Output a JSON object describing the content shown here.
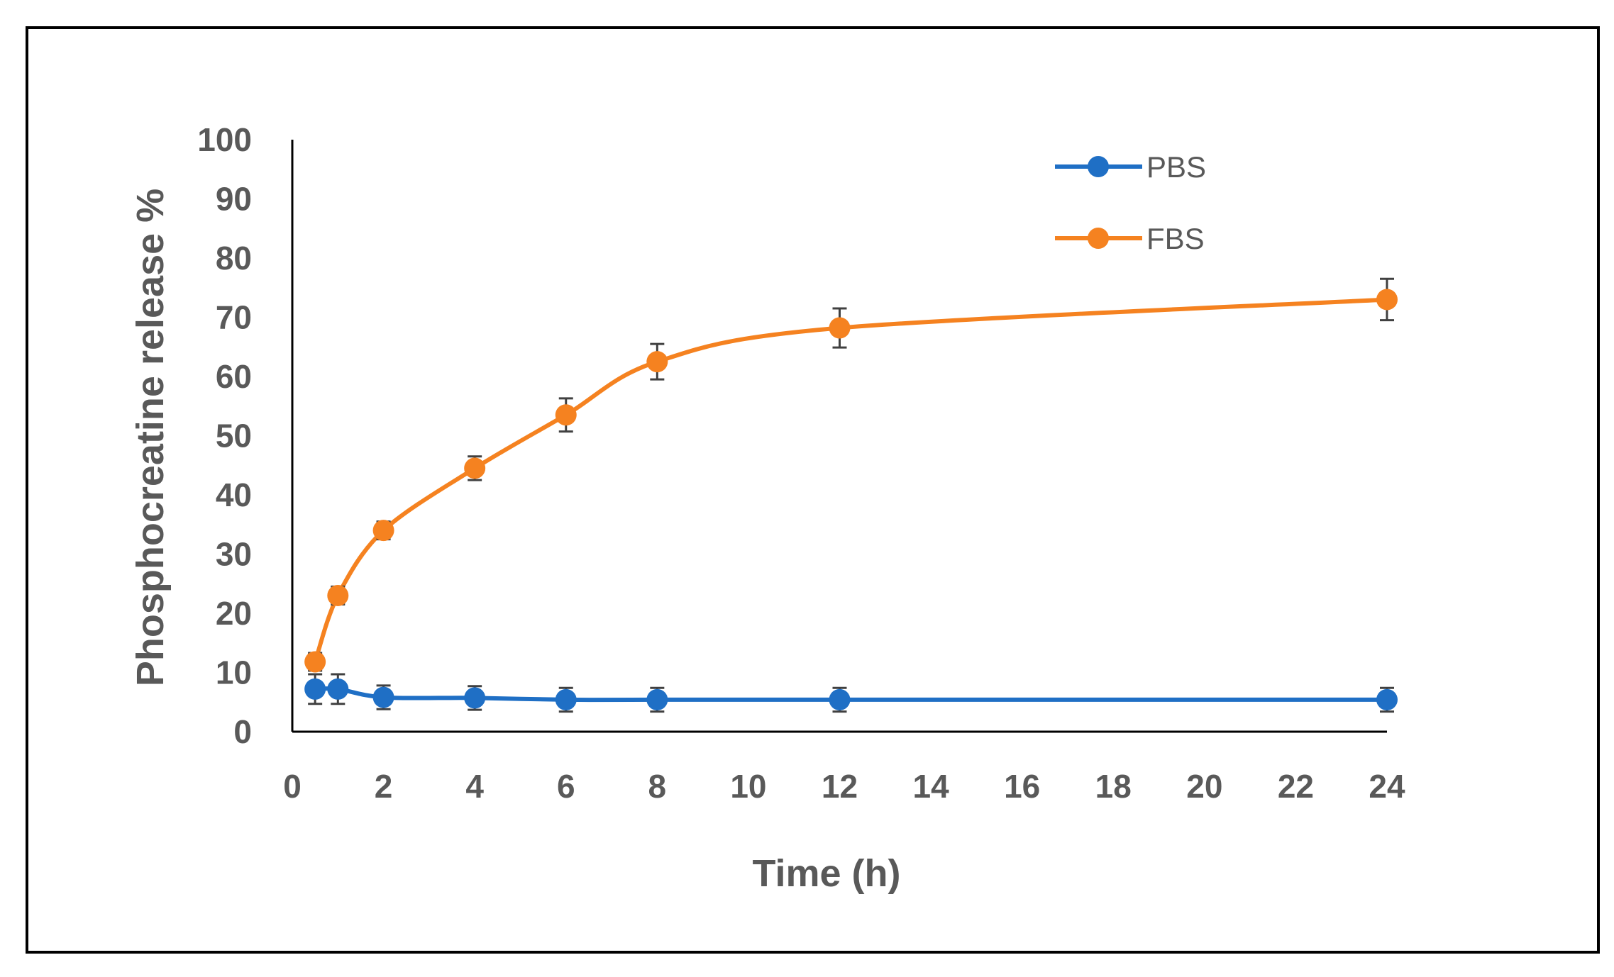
{
  "chart_data": {
    "type": "line",
    "title": "",
    "xlabel": "Time (h)",
    "ylabel": "Phosphocreatine  release %",
    "xlim": [
      0,
      24
    ],
    "ylim": [
      0,
      100
    ],
    "xticks": [
      "0",
      "2",
      "4",
      "6",
      "8",
      "10",
      "12",
      "14",
      "16",
      "18",
      "20",
      "22",
      "24"
    ],
    "yticks": [
      "0",
      "10",
      "20",
      "30",
      "40",
      "50",
      "60",
      "70",
      "80",
      "90",
      "100"
    ],
    "legend_position": "top-right",
    "grid": false,
    "series": [
      {
        "name": "PBS",
        "color": "#1f6fc5",
        "x": [
          0.5,
          1,
          2,
          4,
          6,
          8,
          12,
          24
        ],
        "values": [
          7.2,
          7.2,
          5.8,
          5.7,
          5.4,
          5.4,
          5.4,
          5.4
        ],
        "errors": [
          2.5,
          2.5,
          2.0,
          2.0,
          2.0,
          2.0,
          2.0,
          2.0
        ]
      },
      {
        "name": "FBS",
        "color": "#f58220",
        "x": [
          0.5,
          1,
          2,
          4,
          6,
          8,
          12,
          24
        ],
        "values": [
          11.8,
          23.0,
          34.0,
          44.5,
          53.5,
          62.5,
          68.2,
          73.0
        ],
        "errors": [
          1.5,
          1.5,
          1.5,
          2.0,
          2.8,
          3.0,
          3.3,
          3.5
        ]
      }
    ]
  }
}
